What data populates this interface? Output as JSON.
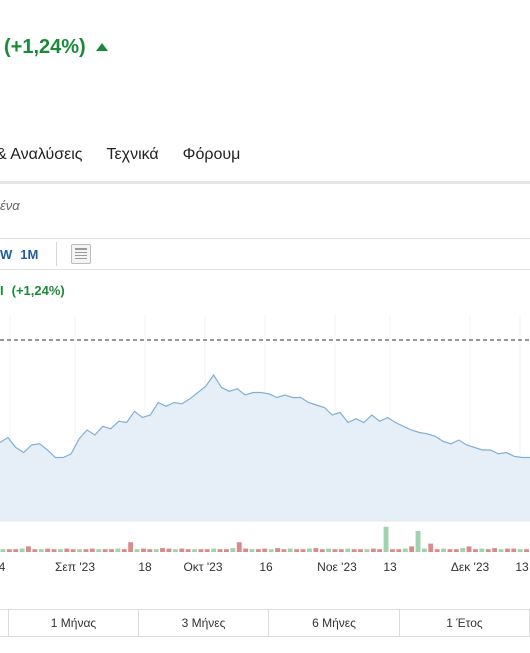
{
  "header": {
    "change_pct": "(+1,24%)",
    "direction_icon": "triangle-up-icon"
  },
  "nav": {
    "tabs": [
      "& Αναλύσεις",
      "Τεχνικά",
      "Φόρουμ"
    ]
  },
  "filter": {
    "text": "ένα"
  },
  "range": {
    "buttons": [
      "W",
      "1M"
    ],
    "calendar_icon": "calendar-icon"
  },
  "chart_header": {
    "change": "(+1,24%)"
  },
  "chart": {
    "x_ticks": [
      "4",
      "Σεπ '23",
      "18",
      "Οκτ '23",
      "16",
      "Νοε '23",
      "13",
      "Δεκ '23",
      "13"
    ],
    "colors": {
      "line": "#7fb0d8",
      "area": "#e6eef7",
      "volume_up": "#9fd3ad",
      "volume_down": "#d98b8b"
    }
  },
  "chart_data": {
    "type": "area",
    "title": "",
    "xlabel": "",
    "ylabel": "",
    "x_tick_labels": [
      "4",
      "Σεπ '23",
      "18",
      "Οκτ '23",
      "16",
      "Νοε '23",
      "13",
      "Δεκ '23",
      "13"
    ],
    "price_relative": [
      0.42,
      0.46,
      0.38,
      0.34,
      0.4,
      0.41,
      0.36,
      0.3,
      0.3,
      0.33,
      0.45,
      0.52,
      0.48,
      0.55,
      0.53,
      0.59,
      0.58,
      0.67,
      0.62,
      0.64,
      0.74,
      0.71,
      0.74,
      0.73,
      0.77,
      0.82,
      0.87,
      0.96,
      0.86,
      0.83,
      0.85,
      0.8,
      0.82,
      0.82,
      0.81,
      0.78,
      0.8,
      0.78,
      0.78,
      0.74,
      0.72,
      0.7,
      0.64,
      0.66,
      0.58,
      0.61,
      0.58,
      0.64,
      0.59,
      0.62,
      0.58,
      0.55,
      0.52,
      0.5,
      0.49,
      0.47,
      0.43,
      0.41,
      0.44,
      0.4,
      0.38,
      0.36,
      0.36,
      0.33,
      0.34,
      0.31,
      0.3,
      0.3
    ],
    "volume_relative": [
      0.1,
      0.1,
      0.1,
      0.12,
      0.2,
      0.1,
      0.1,
      0.12,
      0.1,
      0.1,
      0.12,
      0.1,
      0.1,
      0.1,
      0.12,
      0.1,
      0.1,
      0.1,
      0.12,
      0.1,
      0.35,
      0.1,
      0.12,
      0.1,
      0.1,
      0.14,
      0.12,
      0.1,
      0.12,
      0.1,
      0.1,
      0.1,
      0.1,
      0.12,
      0.1,
      0.1,
      0.14,
      0.35,
      0.12,
      0.1,
      0.1,
      0.12,
      0.1,
      0.14,
      0.1,
      0.12,
      0.1,
      0.1,
      0.12,
      0.14,
      0.1,
      0.12,
      0.1,
      0.1,
      0.12,
      0.1,
      0.1,
      0.1,
      0.12,
      0.1,
      0.9,
      0.1,
      0.1,
      0.12,
      0.2,
      0.75,
      0.12,
      0.3,
      0.1,
      0.12,
      0.1,
      0.1,
      0.14,
      0.2,
      0.1,
      0.12,
      0.1,
      0.14,
      0.1,
      0.12,
      0.12,
      0.1,
      0.1
    ],
    "previous_close_line": true,
    "grid": false,
    "legend": "none"
  },
  "periods": {
    "labels": [
      "",
      "1 Μήνας",
      "3 Μήνες",
      "6 Μήνες",
      "1 Έτος",
      ""
    ]
  }
}
